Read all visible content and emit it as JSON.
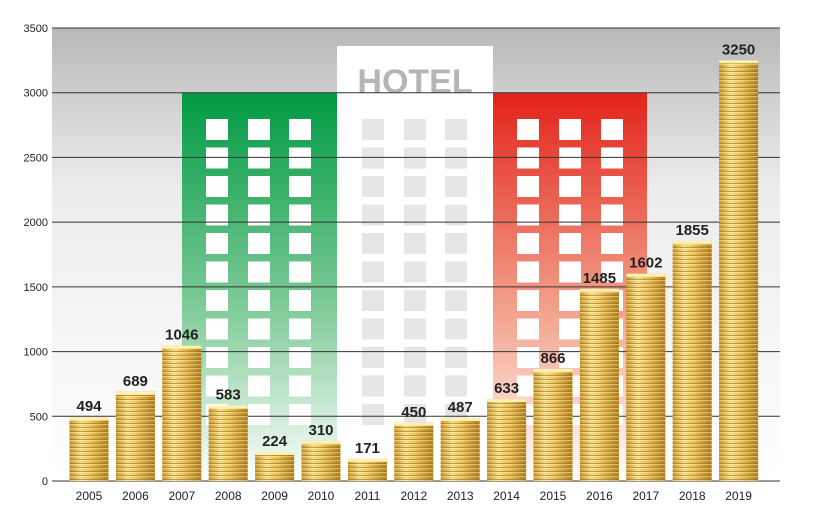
{
  "hotel_sign": "HOTEL",
  "colors": {
    "green": "#009a44",
    "red": "#e8312a",
    "gold_light": "#f6df8a",
    "gold_dark": "#c8962c"
  },
  "chart_data": {
    "type": "bar",
    "title": "",
    "xlabel": "",
    "ylabel": "",
    "ylim": [
      0,
      3500
    ],
    "yticks": [
      0,
      500,
      1000,
      1500,
      2000,
      2500,
      3000,
      3500
    ],
    "grid": true,
    "categories": [
      "2005",
      "2006",
      "2007",
      "2008",
      "2009",
      "2010",
      "2011",
      "2012",
      "2013",
      "2014",
      "2015",
      "2016",
      "2017",
      "2018",
      "2019"
    ],
    "values": [
      494,
      689,
      1046,
      583,
      224,
      310,
      171,
      450,
      487,
      633,
      866,
      1485,
      1602,
      1855,
      3250
    ]
  }
}
